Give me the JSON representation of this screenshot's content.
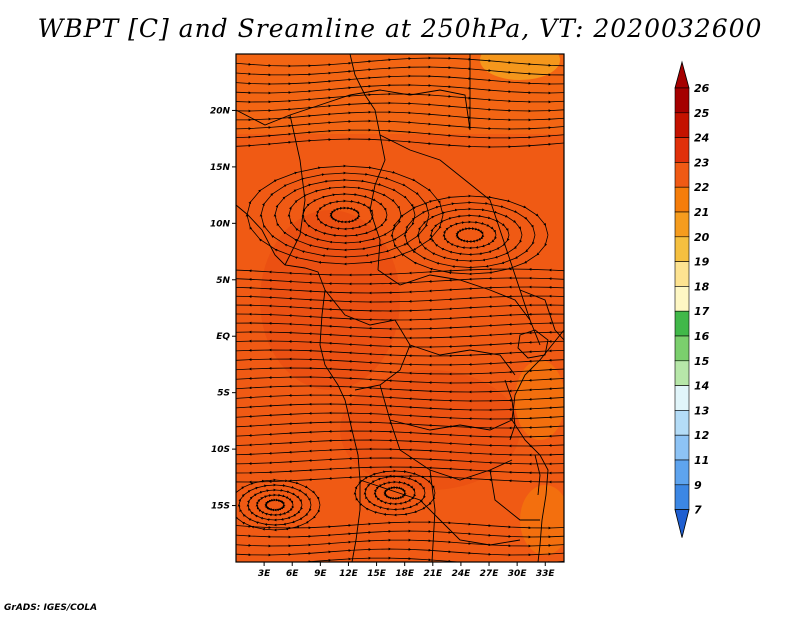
{
  "title": "WBPT [C] and Sreamline at 250hPa, VT: 2020032600",
  "footer": "GrADS: IGES/COLA",
  "map": {
    "lat_labels": [
      "20N",
      "15N",
      "10N",
      "5N",
      "EQ",
      "5S",
      "10S",
      "15S"
    ],
    "lat_values": [
      20,
      15,
      10,
      5,
      0,
      -5,
      -10,
      -15
    ],
    "lon_labels": [
      "3E",
      "6E",
      "9E",
      "12E",
      "15E",
      "18E",
      "21E",
      "24E",
      "27E",
      "30E",
      "33E"
    ],
    "lon_values": [
      3,
      6,
      9,
      12,
      15,
      18,
      21,
      24,
      27,
      30,
      33
    ],
    "lon_range": [
      0,
      35
    ],
    "lat_range": [
      -20,
      25
    ],
    "dominant_fill": "#f05a14"
  },
  "colorbar": {
    "labels": [
      "26",
      "25",
      "24",
      "23",
      "22",
      "21",
      "20",
      "19",
      "18",
      "17",
      "16",
      "15",
      "14",
      "13",
      "12",
      "11",
      "9",
      "7"
    ],
    "colors": [
      "#a50000",
      "#c41200",
      "#e0300a",
      "#f05a14",
      "#f57d0a",
      "#f59c1e",
      "#f5c040",
      "#fde391",
      "#fef7c4",
      "#41b849",
      "#7bcf6d",
      "#b7e7a9",
      "#e1f5fa",
      "#b4dcf7",
      "#8dc3f5",
      "#5ea4ef",
      "#3c87e4",
      "#1f5fd1"
    ]
  }
}
